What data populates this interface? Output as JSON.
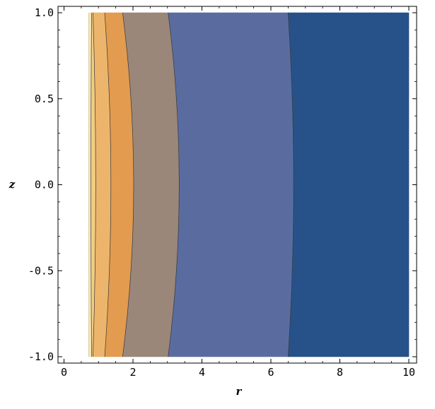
{
  "chart_data": {
    "type": "contour",
    "xlabel": "r",
    "ylabel": "z",
    "xlim": [
      0,
      10
    ],
    "ylim": [
      -1,
      1
    ],
    "xticks": [
      "0",
      "2",
      "4",
      "6",
      "8",
      "10"
    ],
    "yticks": [
      "-1.0",
      "-0.5",
      "0.0",
      "0.5",
      "1.0"
    ],
    "xtick_values": [
      0,
      2,
      4,
      6,
      8,
      10
    ],
    "ytick_values": [
      -1,
      -0.5,
      0,
      0.5,
      1
    ],
    "data_xrange": [
      0.7,
      10
    ],
    "contours": [
      {
        "r_edge": 0.72,
        "r_mid": 0.72
      },
      {
        "r_edge": 0.8,
        "r_mid": 0.78
      },
      {
        "r_edge": 0.84,
        "r_mid": 0.92
      },
      {
        "r_edge": 1.18,
        "r_mid": 1.36
      },
      {
        "r_edge": 1.7,
        "r_mid": 2.02
      },
      {
        "r_edge": 3.02,
        "r_mid": 3.34
      },
      {
        "r_edge": 6.5,
        "r_mid": 6.66
      }
    ],
    "band_colors": [
      "#f8e6b2",
      "#f2cc80",
      "#edb56c",
      "#e29b4f",
      "#9b867a",
      "#5a6c9f",
      "#265289"
    ]
  }
}
